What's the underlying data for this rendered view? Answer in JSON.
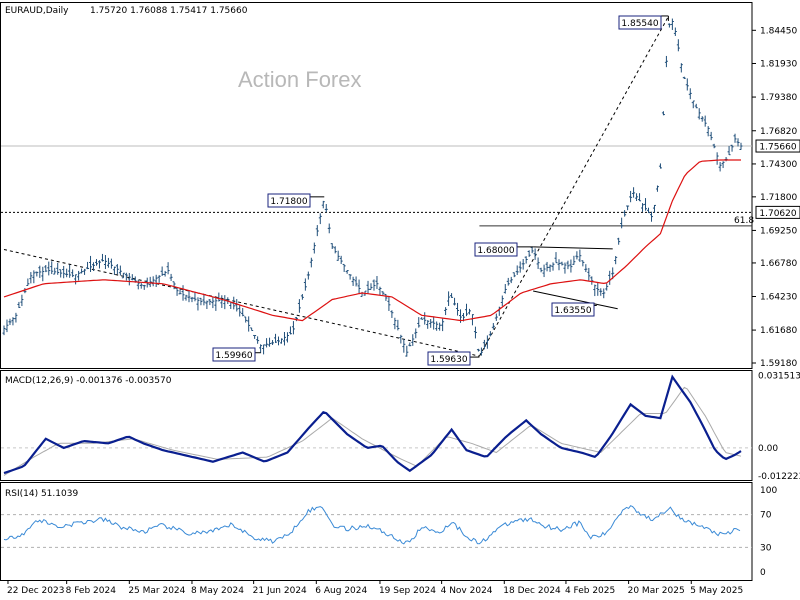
{
  "header": {
    "symbol": "EURAUD,Daily",
    "ohlc": "1.75720 1.76088 1.75417 1.75660"
  },
  "watermark": "Action Forex",
  "colors": {
    "price": "#1f4e79",
    "ma": "#dd1111",
    "macd": "#0a1f8f",
    "signal": "#aaaaaa",
    "rsi": "#3a8ad6",
    "label_border": "#1a237e",
    "grid": "#c8c8c8"
  },
  "chart_data": [
    {
      "type": "line",
      "title": "EURAUD,Daily",
      "x_ticks": [
        "22 Dec 2023",
        "8 Feb 2024",
        "25 Mar 2024",
        "8 May 2024",
        "21 Jun 2024",
        "6 Aug 2024",
        "19 Sep 2024",
        "4 Nov 2024",
        "18 Dec 2024",
        "4 Feb 2025",
        "20 Mar 2025",
        "5 May 2025"
      ],
      "y_ticks": [
        1.8445,
        1.8193,
        1.7938,
        1.7682,
        1.743,
        1.718,
        1.6925,
        1.6678,
        1.6423,
        1.6168,
        1.5918
      ],
      "ylim": [
        1.588,
        1.866
      ],
      "current_price": 1.7566,
      "level_line": 1.7062,
      "fib": {
        "label": "61.8",
        "value": 1.696
      },
      "point_labels": [
        {
          "value": 1.8554,
          "label": "1.85540"
        },
        {
          "value": 1.718,
          "label": "1.71800"
        },
        {
          "value": 1.68,
          "label": "1.68000"
        },
        {
          "value": 1.6355,
          "label": "1.63550"
        },
        {
          "value": 1.5996,
          "label": "1.59960"
        },
        {
          "value": 1.5963,
          "label": "1.59630"
        }
      ],
      "price_anchors": [
        [
          0,
          1.618
        ],
        [
          12,
          1.628
        ],
        [
          28,
          1.66
        ],
        [
          45,
          1.662
        ],
        [
          70,
          1.658
        ],
        [
          100,
          1.67
        ],
        [
          120,
          1.66
        ],
        [
          140,
          1.65
        ],
        [
          165,
          1.662
        ],
        [
          175,
          1.645
        ],
        [
          200,
          1.638
        ],
        [
          225,
          1.64
        ],
        [
          240,
          1.628
        ],
        [
          258,
          1.605
        ],
        [
          275,
          1.608
        ],
        [
          290,
          1.615
        ],
        [
          305,
          1.655
        ],
        [
          322,
          1.718
        ],
        [
          330,
          1.68
        ],
        [
          345,
          1.662
        ],
        [
          360,
          1.645
        ],
        [
          375,
          1.652
        ],
        [
          385,
          1.64
        ],
        [
          405,
          1.6
        ],
        [
          420,
          1.625
        ],
        [
          440,
          1.62
        ],
        [
          448,
          1.645
        ],
        [
          460,
          1.625
        ],
        [
          470,
          1.633
        ],
        [
          478,
          1.597
        ],
        [
          490,
          1.615
        ],
        [
          505,
          1.65
        ],
        [
          520,
          1.665
        ],
        [
          532,
          1.678
        ],
        [
          540,
          1.662
        ],
        [
          555,
          1.668
        ],
        [
          570,
          1.665
        ],
        [
          578,
          1.675
        ],
        [
          588,
          1.658
        ],
        [
          596,
          1.648
        ],
        [
          603,
          1.645
        ],
        [
          612,
          1.66
        ],
        [
          622,
          1.7
        ],
        [
          632,
          1.722
        ],
        [
          642,
          1.712
        ],
        [
          652,
          1.702
        ],
        [
          660,
          1.74
        ],
        [
          668,
          1.848
        ],
        [
          673,
          1.852
        ],
        [
          683,
          1.81
        ],
        [
          695,
          1.787
        ],
        [
          708,
          1.77
        ],
        [
          720,
          1.742
        ],
        [
          728,
          1.748
        ],
        [
          735,
          1.762
        ],
        [
          741,
          1.7566
        ]
      ],
      "ma_anchors": [
        [
          0,
          1.642
        ],
        [
          40,
          1.652
        ],
        [
          100,
          1.655
        ],
        [
          160,
          1.652
        ],
        [
          220,
          1.64
        ],
        [
          270,
          1.628
        ],
        [
          300,
          1.624
        ],
        [
          330,
          1.64
        ],
        [
          360,
          1.645
        ],
        [
          390,
          1.642
        ],
        [
          420,
          1.628
        ],
        [
          460,
          1.624
        ],
        [
          490,
          1.628
        ],
        [
          520,
          1.645
        ],
        [
          550,
          1.652
        ],
        [
          580,
          1.655
        ],
        [
          605,
          1.652
        ],
        [
          625,
          1.665
        ],
        [
          645,
          1.68
        ],
        [
          660,
          1.69
        ],
        [
          672,
          1.715
        ],
        [
          685,
          1.735
        ],
        [
          700,
          1.745
        ],
        [
          720,
          1.746
        ],
        [
          741,
          1.746
        ]
      ],
      "trendlines": [
        {
          "from": [
            0,
            1.678
          ],
          "to": [
            478,
            1.597
          ]
        },
        {
          "from": [
            478,
            1.597
          ],
          "to": [
            668,
            1.855
          ]
        }
      ]
    },
    {
      "type": "line",
      "title": "MACD(12,26,9) -0.001376 -0.003570",
      "y_ticks": [
        0.031513,
        0.0,
        -0.012223
      ],
      "y_tick_labels": [
        "0.031513",
        "0.00",
        "-0.012223"
      ],
      "ylim": [
        -0.014,
        0.034
      ],
      "series": [
        {
          "role": "macd",
          "anchors": [
            [
              0,
              -0.011
            ],
            [
              20,
              -0.008
            ],
            [
              42,
              0.004
            ],
            [
              60,
              0.0
            ],
            [
              80,
              0.003
            ],
            [
              105,
              0.002
            ],
            [
              125,
              0.005
            ],
            [
              140,
              0.002
            ],
            [
              160,
              -0.001
            ],
            [
              190,
              -0.004
            ],
            [
              210,
              -0.006
            ],
            [
              240,
              -0.002
            ],
            [
              262,
              -0.006
            ],
            [
              285,
              -0.002
            ],
            [
              305,
              0.008
            ],
            [
              322,
              0.016
            ],
            [
              345,
              0.006
            ],
            [
              365,
              0.0
            ],
            [
              380,
              0.001
            ],
            [
              395,
              -0.006
            ],
            [
              408,
              -0.01
            ],
            [
              430,
              -0.003
            ],
            [
              450,
              0.008
            ],
            [
              465,
              -0.001
            ],
            [
              485,
              -0.004
            ],
            [
              505,
              0.005
            ],
            [
              525,
              0.012
            ],
            [
              540,
              0.006
            ],
            [
              560,
              0.0
            ],
            [
              580,
              -0.002
            ],
            [
              595,
              -0.004
            ],
            [
              610,
              0.005
            ],
            [
              630,
              0.019
            ],
            [
              645,
              0.014
            ],
            [
              660,
              0.013
            ],
            [
              672,
              0.031
            ],
            [
              690,
              0.02
            ],
            [
              700,
              0.012
            ],
            [
              715,
              -0.001
            ],
            [
              725,
              -0.005
            ],
            [
              735,
              -0.003
            ],
            [
              741,
              -0.0014
            ]
          ]
        },
        {
          "role": "signal",
          "anchors": [
            [
              0,
              -0.012
            ],
            [
              30,
              -0.004
            ],
            [
              55,
              0.002
            ],
            [
              90,
              0.002
            ],
            [
              130,
              0.004
            ],
            [
              170,
              -0.001
            ],
            [
              215,
              -0.005
            ],
            [
              265,
              -0.004
            ],
            [
              300,
              0.003
            ],
            [
              330,
              0.013
            ],
            [
              360,
              0.004
            ],
            [
              395,
              -0.004
            ],
            [
              415,
              -0.008
            ],
            [
              445,
              0.005
            ],
            [
              470,
              0.002
            ],
            [
              495,
              -0.002
            ],
            [
              530,
              0.01
            ],
            [
              560,
              0.002
            ],
            [
              600,
              -0.002
            ],
            [
              640,
              0.015
            ],
            [
              665,
              0.015
            ],
            [
              685,
              0.027
            ],
            [
              705,
              0.014
            ],
            [
              725,
              -0.002
            ],
            [
              741,
              -0.0036
            ]
          ]
        }
      ]
    },
    {
      "type": "line",
      "title": "RSI(14) 51.1039",
      "y_ticks": [
        100,
        70,
        30,
        0
      ],
      "ylim": [
        0,
        100
      ],
      "levels": [
        70,
        30
      ],
      "anchors": [
        [
          0,
          38
        ],
        [
          20,
          48
        ],
        [
          35,
          64
        ],
        [
          55,
          55
        ],
        [
          75,
          60
        ],
        [
          100,
          64
        ],
        [
          120,
          54
        ],
        [
          140,
          49
        ],
        [
          160,
          57
        ],
        [
          185,
          47
        ],
        [
          210,
          49
        ],
        [
          230,
          58
        ],
        [
          250,
          42
        ],
        [
          270,
          38
        ],
        [
          285,
          44
        ],
        [
          305,
          74
        ],
        [
          320,
          80
        ],
        [
          330,
          58
        ],
        [
          345,
          52
        ],
        [
          365,
          57
        ],
        [
          385,
          47
        ],
        [
          405,
          34
        ],
        [
          420,
          54
        ],
        [
          440,
          49
        ],
        [
          450,
          62
        ],
        [
          462,
          47
        ],
        [
          478,
          34
        ],
        [
          495,
          52
        ],
        [
          515,
          63
        ],
        [
          530,
          64
        ],
        [
          545,
          56
        ],
        [
          560,
          52
        ],
        [
          578,
          60
        ],
        [
          590,
          42
        ],
        [
          605,
          46
        ],
        [
          620,
          73
        ],
        [
          630,
          82
        ],
        [
          640,
          71
        ],
        [
          650,
          64
        ],
        [
          660,
          71
        ],
        [
          670,
          80
        ],
        [
          680,
          64
        ],
        [
          700,
          56
        ],
        [
          715,
          48
        ],
        [
          725,
          44
        ],
        [
          735,
          52
        ],
        [
          741,
          51.1
        ]
      ]
    }
  ]
}
